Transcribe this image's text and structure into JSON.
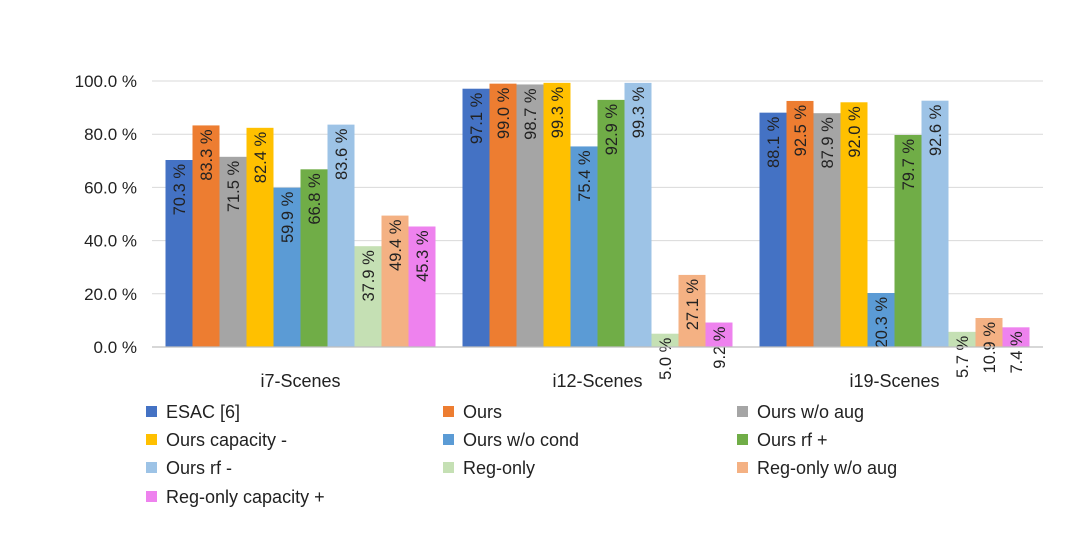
{
  "chart_data": {
    "type": "bar",
    "title": "",
    "xlabel": "",
    "ylabel": "",
    "ylim": [
      0,
      100
    ],
    "yticks": [
      0,
      20,
      40,
      60,
      80,
      100
    ],
    "ytick_labels": [
      "0.0 %",
      "20.0 %",
      "40.0 %",
      "60.0 %",
      "80.0 %",
      "100.0 %"
    ],
    "grid": true,
    "legend_position": "bottom",
    "categories": [
      "i7-Scenes",
      "i12-Scenes",
      "i19-Scenes"
    ],
    "series": [
      {
        "name": "ESAC [6]",
        "color": "#4472C4",
        "values": [
          70.3,
          97.1,
          88.1
        ],
        "labels": [
          "70.3 %",
          "97.1 %",
          "88.1 %"
        ]
      },
      {
        "name": "Ours",
        "color": "#ED7D31",
        "values": [
          83.3,
          99.0,
          92.5
        ],
        "labels": [
          "83.3 %",
          "99.0 %",
          "92.5 %"
        ]
      },
      {
        "name": "Ours w/o aug",
        "color": "#A5A5A5",
        "values": [
          71.5,
          98.7,
          87.9
        ],
        "labels": [
          "71.5 %",
          "98.7 %",
          "87.9 %"
        ]
      },
      {
        "name": "Ours capacity -",
        "color": "#FFC000",
        "values": [
          82.4,
          99.3,
          92.0
        ],
        "labels": [
          "82.4 %",
          "99.3 %",
          "92.0 %"
        ]
      },
      {
        "name": "Ours w/o cond",
        "color": "#5B9BD5",
        "values": [
          59.9,
          75.4,
          20.3
        ],
        "labels": [
          "59.9 %",
          "75.4 %",
          "20.3 %"
        ]
      },
      {
        "name": "Ours rf +",
        "color": "#70AD47",
        "values": [
          66.8,
          92.9,
          79.7
        ],
        "labels": [
          "66.8 %",
          "92.9 %",
          "79.7 %"
        ]
      },
      {
        "name": "Ours rf -",
        "color": "#9DC3E6",
        "values": [
          83.6,
          99.3,
          92.6
        ],
        "labels": [
          "83.6 %",
          "99.3 %",
          "92.6 %"
        ]
      },
      {
        "name": "Reg-only",
        "color": "#C5E0B4",
        "values": [
          37.9,
          5.0,
          5.7
        ],
        "labels": [
          "37.9 %",
          "5.0 %",
          "5.7 %"
        ]
      },
      {
        "name": "Reg-only w/o aug",
        "color": "#F4B183",
        "values": [
          49.4,
          27.1,
          10.9
        ],
        "labels": [
          "49.4 %",
          "27.1 %",
          "10.9 %"
        ]
      },
      {
        "name": "Reg-only capacity +",
        "color": "#EE82EE",
        "values": [
          45.3,
          9.2,
          7.4
        ],
        "labels": [
          "45.3 %",
          "9.2 %",
          "7.4 %"
        ]
      }
    ]
  }
}
